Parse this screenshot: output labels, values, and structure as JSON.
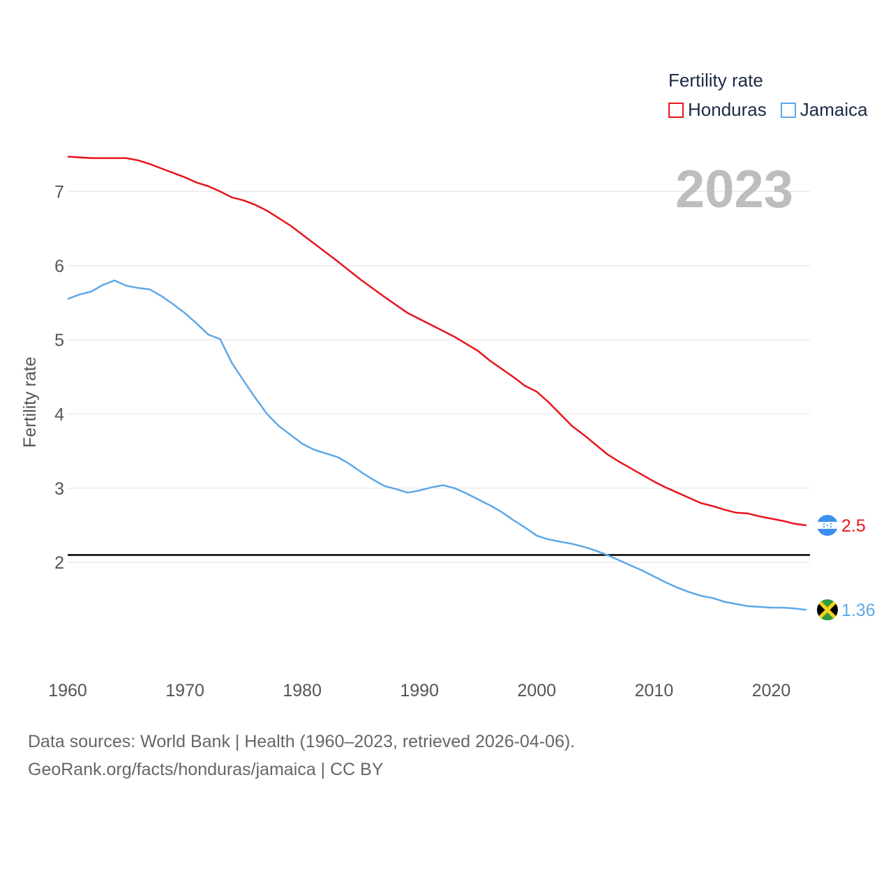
{
  "legend": {
    "title": "Fertility rate",
    "items": [
      {
        "label": "Honduras",
        "color": "#e8151b"
      },
      {
        "label": "Jamaica",
        "color": "#5da8e8"
      }
    ]
  },
  "year_label": "2023",
  "footer": {
    "line1": "Data sources: World Bank | Health (1960–2023, retrieved 2026-04-06).",
    "line2": "GeoRank.org/facts/honduras/jamaica | CC BY"
  },
  "chart_data": {
    "type": "line",
    "title": "Fertility rate",
    "xlabel": "",
    "ylabel": "Fertility rate",
    "xlim": [
      1960,
      2023.3
    ],
    "ylim": [
      0.6,
      7.7
    ],
    "y_ticks": [
      2,
      3,
      4,
      5,
      6,
      7
    ],
    "x_ticks": [
      1960,
      1970,
      1980,
      1990,
      2000,
      2010,
      2020
    ],
    "grid": true,
    "reference_line": {
      "y": 2.1,
      "color": "#000000"
    },
    "series": [
      {
        "name": "Honduras",
        "color": "#e8151b",
        "end_label": "2.5",
        "flag_icon": "honduras-flag-icon",
        "points": [
          [
            1960,
            7.47
          ],
          [
            1962,
            7.45
          ],
          [
            1965,
            7.45
          ],
          [
            1966,
            7.42
          ],
          [
            1967,
            7.37
          ],
          [
            1968,
            7.31
          ],
          [
            1970,
            7.19
          ],
          [
            1971,
            7.12
          ],
          [
            1972,
            7.07
          ],
          [
            1973,
            7.0
          ],
          [
            1974,
            6.92
          ],
          [
            1975,
            6.88
          ],
          [
            1976,
            6.82
          ],
          [
            1977,
            6.74
          ],
          [
            1978,
            6.64
          ],
          [
            1979,
            6.54
          ],
          [
            1980,
            6.42
          ],
          [
            1983,
            6.06
          ],
          [
            1985,
            5.81
          ],
          [
            1987,
            5.58
          ],
          [
            1989,
            5.36
          ],
          [
            1991,
            5.2
          ],
          [
            1993,
            5.04
          ],
          [
            1995,
            4.85
          ],
          [
            1996,
            4.72
          ],
          [
            1998,
            4.5
          ],
          [
            1999,
            4.38
          ],
          [
            2000,
            4.3
          ],
          [
            2001,
            4.16
          ],
          [
            2002,
            4.0
          ],
          [
            2003,
            3.84
          ],
          [
            2004,
            3.72
          ],
          [
            2005,
            3.59
          ],
          [
            2006,
            3.46
          ],
          [
            2007,
            3.36
          ],
          [
            2008,
            3.27
          ],
          [
            2010,
            3.09
          ],
          [
            2011,
            3.01
          ],
          [
            2012,
            2.94
          ],
          [
            2013,
            2.87
          ],
          [
            2014,
            2.8
          ],
          [
            2015,
            2.76
          ],
          [
            2016,
            2.71
          ],
          [
            2017,
            2.67
          ],
          [
            2018,
            2.66
          ],
          [
            2019,
            2.62
          ],
          [
            2020,
            2.59
          ],
          [
            2021,
            2.56
          ],
          [
            2022,
            2.52
          ],
          [
            2023,
            2.5
          ]
        ]
      },
      {
        "name": "Jamaica",
        "color": "#5da8e8",
        "end_label": "1.36",
        "flag_icon": "jamaica-flag-icon",
        "points": [
          [
            1960,
            5.55
          ],
          [
            1961,
            5.61
          ],
          [
            1962,
            5.65
          ],
          [
            1963,
            5.74
          ],
          [
            1964,
            5.8
          ],
          [
            1965,
            5.73
          ],
          [
            1966,
            5.7
          ],
          [
            1967,
            5.68
          ],
          [
            1968,
            5.59
          ],
          [
            1969,
            5.48
          ],
          [
            1970,
            5.36
          ],
          [
            1971,
            5.22
          ],
          [
            1972,
            5.07
          ],
          [
            1973,
            5.01
          ],
          [
            1974,
            4.69
          ],
          [
            1975,
            4.45
          ],
          [
            1976,
            4.22
          ],
          [
            1977,
            4.0
          ],
          [
            1978,
            3.84
          ],
          [
            1979,
            3.72
          ],
          [
            1980,
            3.6
          ],
          [
            1981,
            3.52
          ],
          [
            1982,
            3.47
          ],
          [
            1983,
            3.42
          ],
          [
            1984,
            3.33
          ],
          [
            1985,
            3.22
          ],
          [
            1986,
            3.12
          ],
          [
            1987,
            3.03
          ],
          [
            1988,
            2.99
          ],
          [
            1989,
            2.94
          ],
          [
            1990,
            2.97
          ],
          [
            1991,
            3.01
          ],
          [
            1992,
            3.04
          ],
          [
            1993,
            3.0
          ],
          [
            1994,
            2.93
          ],
          [
            1995,
            2.85
          ],
          [
            1996,
            2.77
          ],
          [
            1997,
            2.68
          ],
          [
            1998,
            2.57
          ],
          [
            1999,
            2.47
          ],
          [
            2000,
            2.36
          ],
          [
            2001,
            2.31
          ],
          [
            2002,
            2.28
          ],
          [
            2003,
            2.25
          ],
          [
            2004,
            2.21
          ],
          [
            2005,
            2.16
          ],
          [
            2006,
            2.1
          ],
          [
            2007,
            2.03
          ],
          [
            2008,
            1.96
          ],
          [
            2009,
            1.89
          ],
          [
            2010,
            1.81
          ],
          [
            2011,
            1.73
          ],
          [
            2012,
            1.66
          ],
          [
            2013,
            1.6
          ],
          [
            2014,
            1.55
          ],
          [
            2015,
            1.52
          ],
          [
            2016,
            1.47
          ],
          [
            2017,
            1.44
          ],
          [
            2018,
            1.41
          ],
          [
            2019,
            1.4
          ],
          [
            2020,
            1.39
          ],
          [
            2021,
            1.39
          ],
          [
            2022,
            1.38
          ],
          [
            2023,
            1.36
          ]
        ]
      }
    ]
  }
}
